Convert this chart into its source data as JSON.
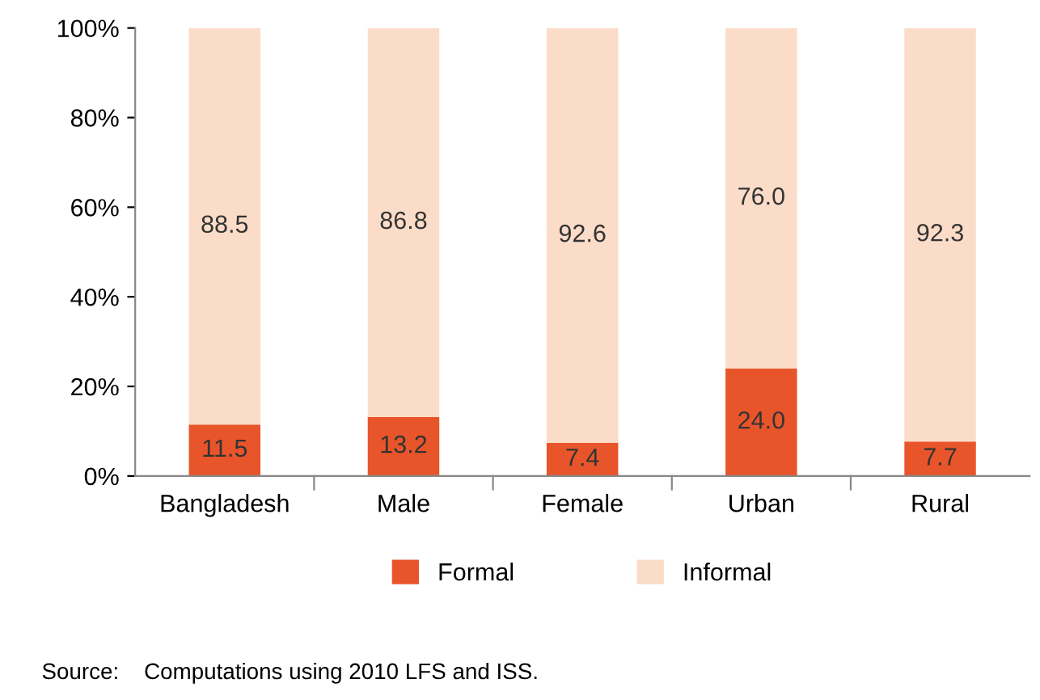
{
  "chart_data": {
    "type": "bar",
    "stacked": true,
    "categories": [
      "Bangladesh",
      "Male",
      "Female",
      "Urban",
      "Rural"
    ],
    "series": [
      {
        "name": "Formal",
        "color": "#e8552b",
        "values": [
          11.5,
          13.2,
          7.4,
          24.0,
          7.7
        ],
        "value_labels": [
          "11.5",
          "13.2",
          "7.4",
          "24.0",
          "7.7"
        ]
      },
      {
        "name": "Informal",
        "color": "#fbdcc8",
        "values": [
          88.5,
          86.8,
          92.6,
          76.0,
          92.3
        ],
        "value_labels": [
          "88.5",
          "86.8",
          "92.6",
          "76.0",
          "92.3"
        ]
      }
    ],
    "ylim": [
      0,
      100
    ],
    "yticks": [
      {
        "value": 0,
        "label": "0%"
      },
      {
        "value": 20,
        "label": "20%"
      },
      {
        "value": 40,
        "label": "40%"
      },
      {
        "value": 60,
        "label": "60%"
      },
      {
        "value": 80,
        "label": "80%"
      },
      {
        "value": 100,
        "label": "100%"
      }
    ],
    "grid": false,
    "legend": "bottom",
    "annotations": [
      "Source:    Computations using 2010 LFS and ISS."
    ]
  }
}
